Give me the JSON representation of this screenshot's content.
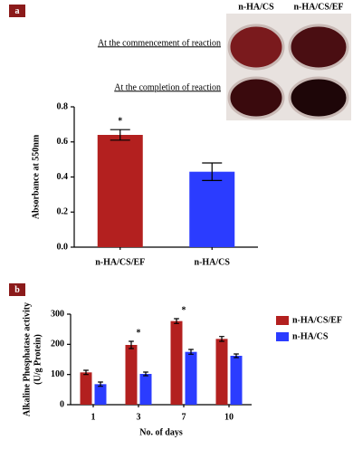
{
  "chart_data": [
    {
      "type": "bar",
      "panel_label": "a",
      "y_label": [
        "Absorbance at 550nm"
      ],
      "categories": [
        "n-HA/CS/EF",
        "n-HA/CS"
      ],
      "values": [
        0.64,
        0.43
      ],
      "errors": [
        0.03,
        0.05
      ],
      "colors": [
        "#b3201f",
        "#2b3cff"
      ],
      "ylim": [
        0,
        0.8
      ],
      "yticks": [
        {
          "value": 0,
          "label": "0.0"
        },
        0.2,
        0.4,
        0.6,
        0.8
      ],
      "annotations": [
        {
          "text": "*",
          "category": "n-HA/CS/EF"
        }
      ],
      "image_labels": {
        "columns": [
          "n-HA/CS",
          "n-HA/CS/EF"
        ],
        "rows": [
          "At the commencement of reaction",
          "At the completion of reaction"
        ]
      }
    },
    {
      "type": "grouped-bar",
      "panel_label": "b",
      "y_label": [
        "Alkaline Phosphatase activity",
        "(U/g Protein)"
      ],
      "x_label": "No. of days",
      "categories": [
        "1",
        "3",
        "7",
        "10"
      ],
      "series": [
        {
          "name": "n-HA/CS/EF",
          "color": "#b3201f",
          "values": [
            107,
            198,
            277,
            218
          ],
          "errors": [
            7,
            12,
            8,
            8
          ]
        },
        {
          "name": "n-HA/CS",
          "color": "#2b3cff",
          "values": [
            68,
            102,
            175,
            162
          ],
          "errors": [
            7,
            6,
            8,
            6
          ]
        }
      ],
      "ylim": [
        0,
        300
      ],
      "yticks": [
        0,
        100,
        200,
        300
      ],
      "annotations": [
        {
          "text": "*",
          "category": "3"
        },
        {
          "text": "*",
          "category": "7"
        }
      ],
      "legend": "upper right"
    }
  ]
}
